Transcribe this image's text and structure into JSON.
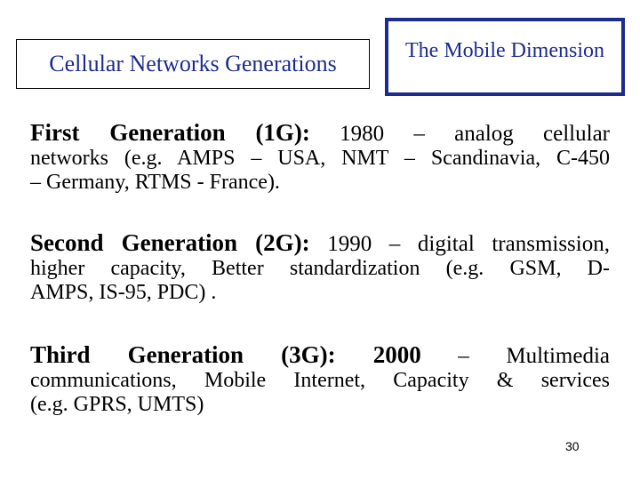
{
  "header": {
    "title": "Cellular Networks Generations",
    "section": "The Mobile Dimension"
  },
  "generations": [
    {
      "label": "First Generation (1G):",
      "line1_rest": " 1980 – analog cellular",
      "line2": "networks (e.g. AMPS – USA, NMT – Scandinavia, C-450",
      "line3": "– Germany, RTMS - France)."
    },
    {
      "label": "Second Generation (2G):",
      "line1_rest": " 1990 – digital transmission,",
      "line2": "higher capacity, Better standardization (e.g. GSM, D-",
      "line3": "AMPS, IS-95, PDC) ."
    },
    {
      "label": "Third Generation (3G): 2000",
      "line1_rest": " – Multimedia",
      "line2": "communications, Mobile Internet, Capacity & services",
      "line3": "(e.g. GPRS, UMTS)"
    }
  ],
  "footer": {
    "page_number": "30"
  },
  "colors": {
    "title_blue": "#1c2b8f",
    "text": "#000000"
  }
}
